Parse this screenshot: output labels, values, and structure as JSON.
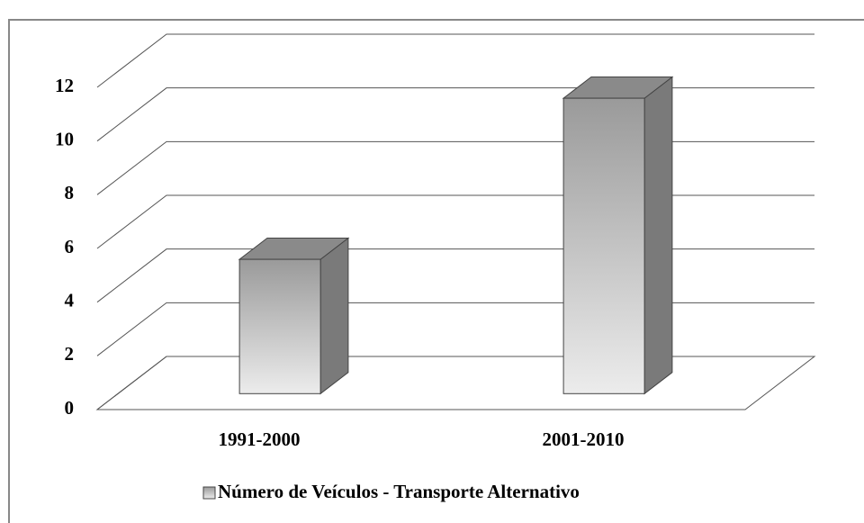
{
  "chart_data": {
    "type": "bar",
    "categories": [
      "1991-2000",
      "2001-2010"
    ],
    "series": [
      {
        "name": "Número de Veículos - Transporte Alternativo",
        "color": "#b0b0b0",
        "values": [
          5,
          11
        ]
      }
    ],
    "ylim": [
      0,
      12
    ],
    "yticks": [
      0,
      2,
      4,
      6,
      8,
      10,
      12
    ],
    "grid": true
  }
}
